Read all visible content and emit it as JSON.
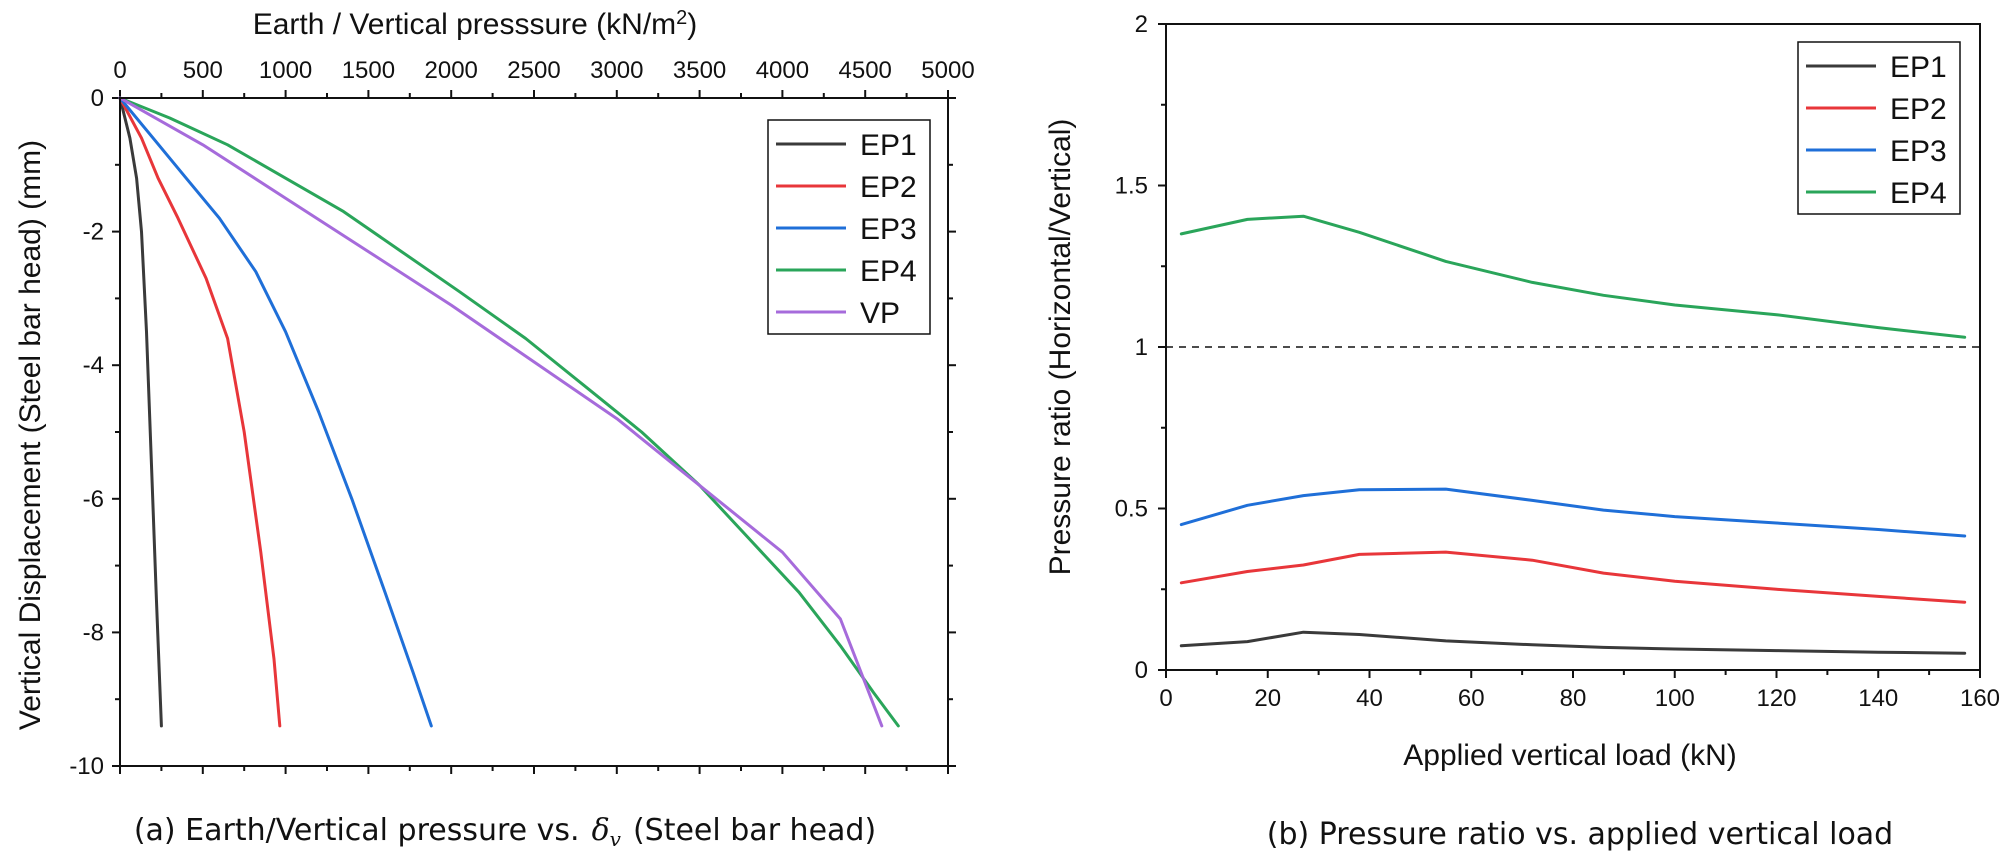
{
  "chart_data": [
    {
      "type": "line",
      "xlabel_prefix": "Earth / Vertical presssure (kN/m",
      "xlabel_sup": "2",
      "xlabel_suffix": ")",
      "ylabel": "Vertical Displacement (Steel bar head) (mm)",
      "xlim": [
        0,
        5000
      ],
      "ylim": [
        -10,
        0
      ],
      "xticks": [
        0,
        500,
        1000,
        1500,
        2000,
        2500,
        3000,
        3500,
        4000,
        4500,
        5000
      ],
      "yticks": [
        0,
        -2,
        -4,
        -6,
        -8,
        -10
      ],
      "x_axis_position": "top",
      "y_inverted_top_zero": true,
      "legend_position": "top-right",
      "series": [
        {
          "name": "EP1",
          "color": "#3a3a3a",
          "points": [
            [
              0,
              0
            ],
            [
              60,
              -0.6
            ],
            [
              100,
              -1.2
            ],
            [
              130,
              -2.0
            ],
            [
              160,
              -3.5
            ],
            [
              190,
              -5.5
            ],
            [
              220,
              -7.5
            ],
            [
              250,
              -9.4
            ]
          ]
        },
        {
          "name": "EP2",
          "color": "#e8363a",
          "points": [
            [
              0,
              0
            ],
            [
              130,
              -0.6
            ],
            [
              230,
              -1.2
            ],
            [
              350,
              -1.8
            ],
            [
              520,
              -2.7
            ],
            [
              650,
              -3.6
            ],
            [
              750,
              -5.0
            ],
            [
              850,
              -6.8
            ],
            [
              930,
              -8.4
            ],
            [
              965,
              -9.4
            ]
          ]
        },
        {
          "name": "EP3",
          "color": "#1f6fd8",
          "points": [
            [
              0,
              0
            ],
            [
              200,
              -0.6
            ],
            [
              400,
              -1.2
            ],
            [
              600,
              -1.8
            ],
            [
              820,
              -2.6
            ],
            [
              1000,
              -3.5
            ],
            [
              1200,
              -4.7
            ],
            [
              1400,
              -6.0
            ],
            [
              1600,
              -7.4
            ],
            [
              1770,
              -8.6
            ],
            [
              1880,
              -9.4
            ]
          ]
        },
        {
          "name": "EP4",
          "color": "#2aa55a",
          "points": [
            [
              0,
              0
            ],
            [
              300,
              -0.3
            ],
            [
              650,
              -0.7
            ],
            [
              1000,
              -1.2
            ],
            [
              1350,
              -1.7
            ],
            [
              1700,
              -2.3
            ],
            [
              2050,
              -2.9
            ],
            [
              2450,
              -3.6
            ],
            [
              2800,
              -4.3
            ],
            [
              3150,
              -5.0
            ],
            [
              3500,
              -5.8
            ],
            [
              3800,
              -6.6
            ],
            [
              4100,
              -7.4
            ],
            [
              4350,
              -8.2
            ],
            [
              4550,
              -8.9
            ],
            [
              4700,
              -9.4
            ]
          ]
        },
        {
          "name": "VP",
          "color": "#a66bdb",
          "points": [
            [
              0,
              0
            ],
            [
              500,
              -0.7
            ],
            [
              1000,
              -1.5
            ],
            [
              1500,
              -2.3
            ],
            [
              2000,
              -3.1
            ],
            [
              2500,
              -3.95
            ],
            [
              3000,
              -4.8
            ],
            [
              3500,
              -5.8
            ],
            [
              4000,
              -6.8
            ],
            [
              4350,
              -7.8
            ],
            [
              4600,
              -9.4
            ]
          ]
        }
      ],
      "caption_prefix": "(a) Earth/Vertical pressure vs.",
      "caption_symbol": "δ",
      "caption_subscript": "v",
      "caption_suffix": "(Steel bar head)"
    },
    {
      "type": "line",
      "xlabel": "Applied vertical load (kN)",
      "ylabel": "Pressure ratio (Horizontal/Vertical)",
      "xlim": [
        0,
        160
      ],
      "ylim": [
        0,
        2
      ],
      "xticks": [
        0,
        20,
        40,
        60,
        80,
        100,
        120,
        140,
        160
      ],
      "yticks": [
        0,
        0.5,
        1,
        1.5,
        2
      ],
      "ytick_labels": [
        "0",
        "0.5",
        "1",
        "1.5",
        "2"
      ],
      "reference_line_y": 1,
      "legend_position": "top-right",
      "series": [
        {
          "name": "EP1",
          "color": "#3a3a3a",
          "points": [
            [
              3,
              0.075
            ],
            [
              16,
              0.088
            ],
            [
              27,
              0.117
            ],
            [
              38,
              0.11
            ],
            [
              55,
              0.09
            ],
            [
              72,
              0.078
            ],
            [
              86,
              0.07
            ],
            [
              100,
              0.065
            ],
            [
              120,
              0.06
            ],
            [
              140,
              0.055
            ],
            [
              157,
              0.052
            ]
          ]
        },
        {
          "name": "EP2",
          "color": "#e8363a",
          "points": [
            [
              3,
              0.27
            ],
            [
              16,
              0.305
            ],
            [
              27,
              0.325
            ],
            [
              38,
              0.358
            ],
            [
              55,
              0.365
            ],
            [
              72,
              0.34
            ],
            [
              86,
              0.3
            ],
            [
              100,
              0.275
            ],
            [
              120,
              0.25
            ],
            [
              140,
              0.228
            ],
            [
              157,
              0.21
            ]
          ]
        },
        {
          "name": "EP3",
          "color": "#1f6fd8",
          "points": [
            [
              3,
              0.45
            ],
            [
              16,
              0.51
            ],
            [
              27,
              0.54
            ],
            [
              38,
              0.558
            ],
            [
              55,
              0.56
            ],
            [
              72,
              0.525
            ],
            [
              86,
              0.495
            ],
            [
              100,
              0.475
            ],
            [
              120,
              0.455
            ],
            [
              140,
              0.435
            ],
            [
              157,
              0.415
            ]
          ]
        },
        {
          "name": "EP4",
          "color": "#2aa55a",
          "points": [
            [
              3,
              1.35
            ],
            [
              16,
              1.395
            ],
            [
              27,
              1.405
            ],
            [
              38,
              1.355
            ],
            [
              55,
              1.265
            ],
            [
              72,
              1.2
            ],
            [
              86,
              1.16
            ],
            [
              100,
              1.13
            ],
            [
              120,
              1.1
            ],
            [
              140,
              1.06
            ],
            [
              157,
              1.03
            ]
          ]
        }
      ],
      "caption": "(b) Pressure ratio vs. applied vertical load"
    }
  ]
}
